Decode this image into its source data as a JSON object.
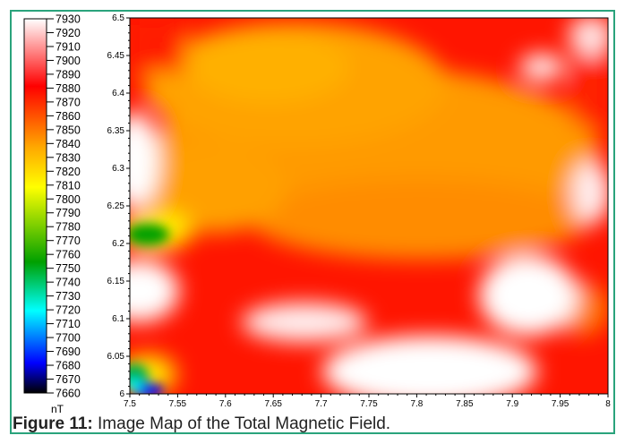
{
  "caption": {
    "label": "Figure 11:",
    "text": "Image Map of the Total Magnetic Field."
  },
  "chart_data": {
    "type": "heatmap",
    "title": "",
    "xlabel": "",
    "ylabel": "",
    "xlim": [
      7.5,
      8
    ],
    "ylim": [
      6,
      6.5
    ],
    "x_ticks": [
      "7.5",
      "7.55",
      "7.6",
      "7.65",
      "7.7",
      "7.75",
      "7.8",
      "7.85",
      "7.9",
      "7.95",
      "8"
    ],
    "y_ticks": [
      "6",
      "6.05",
      "6.1",
      "6.15",
      "6.2",
      "6.25",
      "6.3",
      "6.35",
      "6.4",
      "6.45",
      "6.5"
    ],
    "colorbar": {
      "unit": "nT",
      "min": 7660,
      "max": 7930,
      "labels": [
        "7930",
        "7920",
        "7910",
        "7900",
        "7890",
        "7880",
        "7870",
        "7860",
        "7850",
        "7840",
        "7830",
        "7820",
        "7810",
        "7800",
        "7790",
        "7780",
        "7770",
        "7760",
        "7750",
        "7740",
        "7730",
        "7720",
        "7710",
        "7700",
        "7690",
        "7680",
        "7670",
        "7660"
      ],
      "colors": [
        "#000000",
        "#0000ff",
        "#00ffff",
        "#00a000",
        "#ffff00",
        "#ffa500",
        "#ff0000",
        "#ffffff"
      ]
    },
    "field_features": [
      {
        "feature": "high",
        "x": 7.51,
        "y": 6.33,
        "value": 7930
      },
      {
        "feature": "high",
        "x": 7.51,
        "y": 6.14,
        "value": 7920
      },
      {
        "feature": "high",
        "x": 7.82,
        "y": 6.02,
        "value": 7920
      },
      {
        "feature": "high",
        "x": 7.97,
        "y": 6.2,
        "value": 7900
      },
      {
        "feature": "high",
        "x": 7.96,
        "y": 6.43,
        "value": 7900
      },
      {
        "feature": "low",
        "x": 7.52,
        "y": 6.21,
        "value": 7775
      },
      {
        "feature": "low",
        "x": 7.54,
        "y": 6.0,
        "value": 7660
      },
      {
        "feature": "moderate",
        "x": 7.68,
        "y": 6.42,
        "value": 7840
      },
      {
        "feature": "moderate",
        "x": 7.75,
        "y": 6.28,
        "value": 7840
      }
    ]
  }
}
